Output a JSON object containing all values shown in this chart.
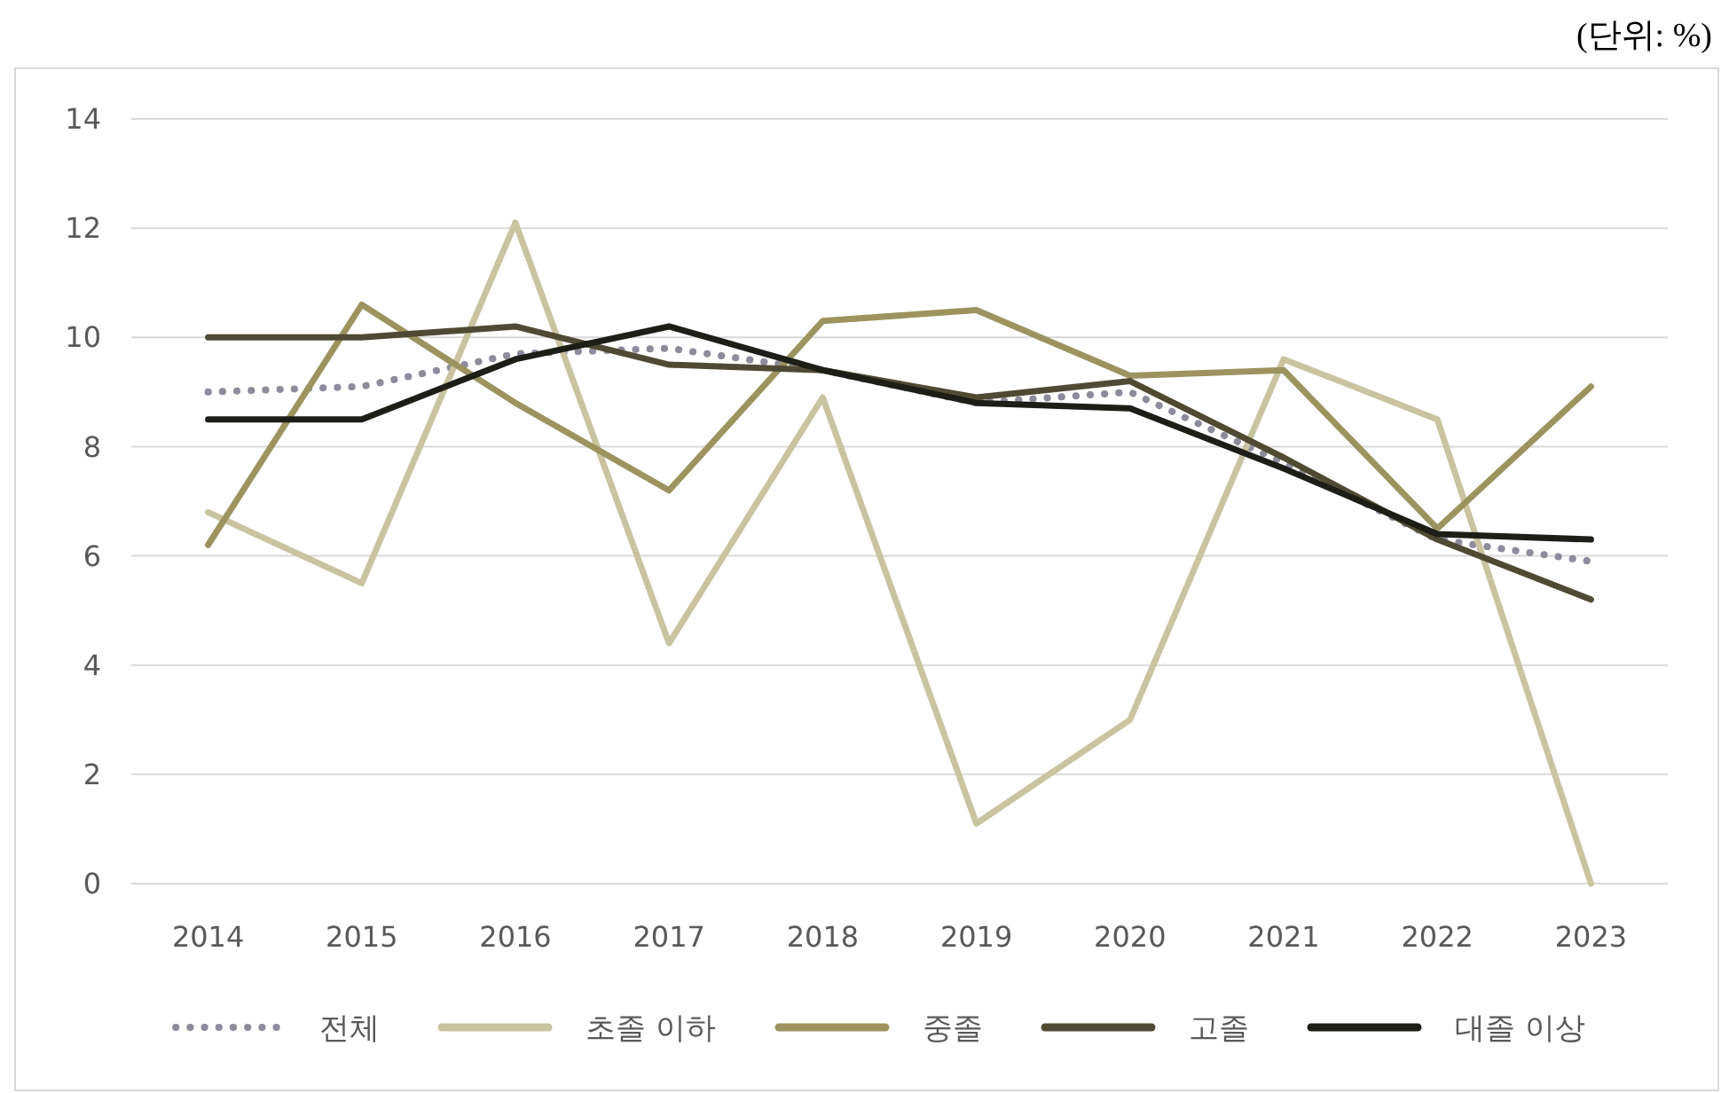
{
  "chart_data": {
    "type": "line",
    "annotations": [
      "(단위: %)"
    ],
    "categories": [
      "2014",
      "2015",
      "2016",
      "2017",
      "2018",
      "2019",
      "2020",
      "2021",
      "2022",
      "2023"
    ],
    "series": [
      {
        "name": "전체",
        "color": "#8c8c9c",
        "line_style": "dotted",
        "values": [
          9.0,
          9.1,
          9.7,
          9.8,
          9.4,
          8.8,
          9.0,
          7.7,
          6.3,
          5.9
        ]
      },
      {
        "name": "초졸 이하",
        "color": "#c9c3a0",
        "line_style": "solid",
        "values": [
          6.8,
          5.5,
          12.1,
          4.4,
          8.9,
          1.1,
          3.0,
          9.6,
          8.5,
          0.0
        ]
      },
      {
        "name": "중졸",
        "color": "#9c935f",
        "line_style": "solid",
        "values": [
          6.2,
          10.6,
          8.8,
          7.2,
          10.3,
          10.5,
          9.3,
          9.4,
          6.5,
          9.1
        ]
      },
      {
        "name": "고졸",
        "color": "#4f4a33",
        "line_style": "solid",
        "values": [
          10.0,
          10.0,
          10.2,
          9.5,
          9.4,
          8.9,
          9.2,
          7.8,
          6.3,
          5.2
        ]
      },
      {
        "name": "대졸 이상",
        "color": "#1e1e18",
        "line_style": "solid",
        "values": [
          8.5,
          8.5,
          9.6,
          10.2,
          9.4,
          8.8,
          8.7,
          7.6,
          6.4,
          6.3
        ]
      }
    ],
    "ylim": [
      0,
      14
    ],
    "yticks": [
      0,
      2,
      4,
      6,
      8,
      10,
      12,
      14
    ],
    "grid": "y",
    "legend": "bottom"
  }
}
